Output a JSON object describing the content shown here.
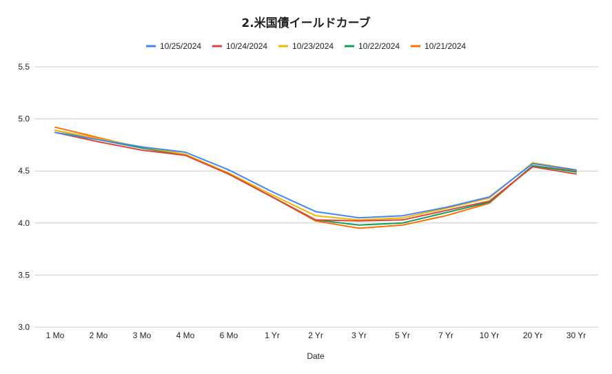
{
  "chart_data": {
    "type": "line",
    "title": "2.米国債イールドカーブ",
    "xlabel": "Date",
    "ylabel": "",
    "ylim": [
      3.0,
      5.5
    ],
    "yticks": [
      "3.0",
      "3.5",
      "4.0",
      "4.5",
      "5.0",
      "5.5"
    ],
    "grid": true,
    "legend_position": "top",
    "categories": [
      "1 Mo",
      "2 Mo",
      "3 Mo",
      "4 Mo",
      "6 Mo",
      "1 Yr",
      "2 Yr",
      "3 Yr",
      "5 Yr",
      "7 Yr",
      "10 Yr",
      "20 Yr",
      "30 Yr"
    ],
    "series": [
      {
        "name": "10/25/2024",
        "color": "#4285f4",
        "values": [
          4.87,
          4.8,
          4.73,
          4.68,
          4.51,
          4.3,
          4.11,
          4.05,
          4.07,
          4.15,
          4.25,
          4.57,
          4.51
        ]
      },
      {
        "name": "10/24/2024",
        "color": "#db4437",
        "values": [
          4.87,
          4.78,
          4.7,
          4.65,
          4.47,
          4.25,
          4.03,
          4.02,
          4.03,
          4.12,
          4.21,
          4.54,
          4.47
        ]
      },
      {
        "name": "10/23/2024",
        "color": "#f4b400",
        "values": [
          4.89,
          4.81,
          4.73,
          4.66,
          4.48,
          4.27,
          4.07,
          4.03,
          4.05,
          4.14,
          4.24,
          4.58,
          4.51
        ]
      },
      {
        "name": "10/22/2024",
        "color": "#0f9d58",
        "values": [
          4.89,
          4.8,
          4.72,
          4.66,
          4.47,
          4.25,
          4.03,
          3.98,
          4.0,
          4.1,
          4.2,
          4.55,
          4.49
        ]
      },
      {
        "name": "10/21/2024",
        "color": "#ff6d01",
        "values": [
          4.92,
          4.82,
          4.72,
          4.65,
          4.47,
          4.25,
          4.02,
          3.95,
          3.98,
          4.07,
          4.19,
          4.55,
          4.5
        ]
      }
    ]
  }
}
